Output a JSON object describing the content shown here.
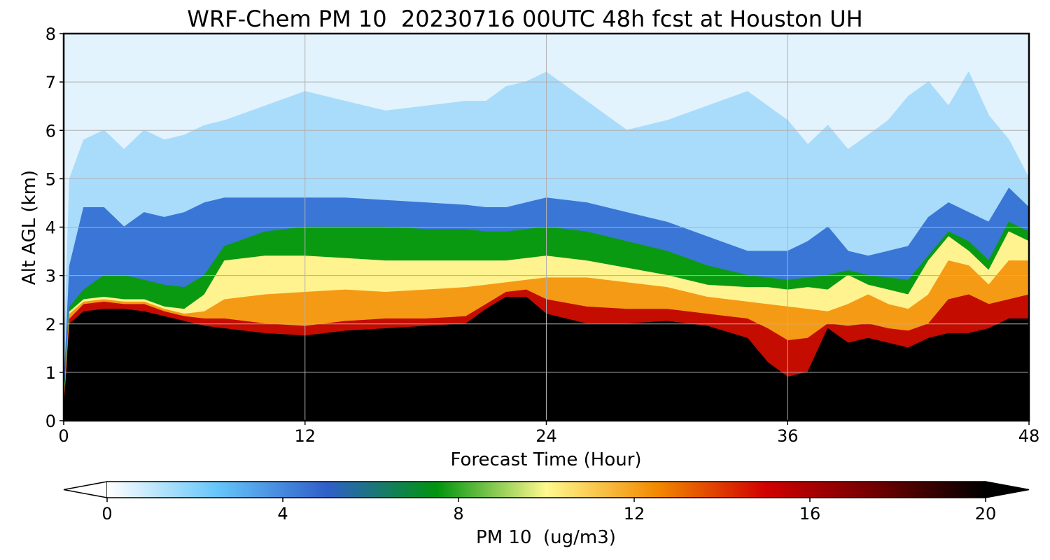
{
  "chart_data": {
    "type": "heatmap",
    "title": "WRF-Chem PM 10  20230716 00UTC 48h fcst at Houston UH",
    "xlabel": "Forecast Time (Hour)",
    "ylabel": "Alt AGL (km)",
    "xlim": [
      0,
      48
    ],
    "ylim": [
      0,
      8
    ],
    "xticks": [
      "0",
      "12",
      "24",
      "36",
      "48"
    ],
    "yticks": [
      "0",
      "1",
      "2",
      "3",
      "4",
      "5",
      "6",
      "7",
      "8"
    ],
    "grid": true,
    "colorbar": {
      "label": "PM 10  (ug/m3)",
      "range": [
        0,
        20
      ],
      "ticks": [
        "0",
        "4",
        "8",
        "12",
        "16",
        "20"
      ],
      "extend": "both",
      "color_stops": [
        {
          "value": 0,
          "color": "#ffffff"
        },
        {
          "value": 2.5,
          "color": "#66c6fa"
        },
        {
          "value": 5,
          "color": "#2f5fc9"
        },
        {
          "value": 7.5,
          "color": "#00940e"
        },
        {
          "value": 10,
          "color": "#fff98e"
        },
        {
          "value": 12.5,
          "color": "#f28a00"
        },
        {
          "value": 15,
          "color": "#d10000"
        },
        {
          "value": 17.5,
          "color": "#6f0000"
        },
        {
          "value": 20,
          "color": "#000000"
        }
      ]
    },
    "profiles_x_hours": [
      0,
      0.3,
      1,
      2,
      3,
      4,
      5,
      6,
      7,
      8,
      10,
      12,
      14,
      16,
      18,
      20,
      21,
      22,
      23,
      24,
      26,
      28,
      30,
      32,
      34,
      35,
      36,
      37,
      38,
      39,
      40,
      41,
      42,
      43,
      44,
      45,
      46,
      47,
      48
    ],
    "boundary_heights_km": {
      "black_top": [
        0,
        2.0,
        2.25,
        2.3,
        2.3,
        2.25,
        2.15,
        2.05,
        1.95,
        1.9,
        1.8,
        1.75,
        1.85,
        1.9,
        1.95,
        2.0,
        2.3,
        2.55,
        2.55,
        2.2,
        2.0,
        2.0,
        2.05,
        1.95,
        1.7,
        1.2,
        0.9,
        1.0,
        1.9,
        1.6,
        1.7,
        1.6,
        1.5,
        1.7,
        1.8,
        1.8,
        1.9,
        2.1,
        2.1
      ],
      "red_top": [
        0.1,
        2.1,
        2.4,
        2.45,
        2.4,
        2.4,
        2.25,
        2.15,
        2.1,
        2.1,
        2.0,
        1.95,
        2.05,
        2.1,
        2.1,
        2.15,
        2.4,
        2.65,
        2.7,
        2.5,
        2.35,
        2.3,
        2.3,
        2.2,
        2.1,
        1.9,
        1.65,
        1.7,
        2.0,
        1.95,
        2.0,
        1.9,
        1.85,
        2.0,
        2.5,
        2.6,
        2.4,
        2.5,
        2.6
      ],
      "orange_top": [
        0.15,
        2.2,
        2.45,
        2.5,
        2.45,
        2.45,
        2.3,
        2.2,
        2.25,
        2.5,
        2.6,
        2.65,
        2.7,
        2.65,
        2.7,
        2.75,
        2.8,
        2.85,
        2.9,
        2.95,
        2.95,
        2.85,
        2.75,
        2.55,
        2.45,
        2.4,
        2.35,
        2.3,
        2.25,
        2.4,
        2.6,
        2.4,
        2.3,
        2.6,
        3.3,
        3.2,
        2.8,
        3.3,
        3.3
      ],
      "yellow_top": [
        0.2,
        2.25,
        2.5,
        2.55,
        2.5,
        2.5,
        2.35,
        2.3,
        2.6,
        3.3,
        3.4,
        3.4,
        3.35,
        3.3,
        3.3,
        3.3,
        3.3,
        3.3,
        3.35,
        3.4,
        3.3,
        3.15,
        3.0,
        2.8,
        2.75,
        2.75,
        2.7,
        2.75,
        2.7,
        3.0,
        2.8,
        2.7,
        2.6,
        3.3,
        3.8,
        3.5,
        3.1,
        3.9,
        3.7
      ],
      "green_top": [
        0.3,
        2.35,
        2.7,
        3.0,
        3.0,
        2.9,
        2.8,
        2.75,
        3.0,
        3.6,
        3.9,
        4.0,
        4.0,
        4.0,
        3.95,
        3.95,
        3.9,
        3.9,
        3.95,
        4.0,
        3.9,
        3.7,
        3.5,
        3.2,
        3.0,
        2.95,
        2.9,
        2.95,
        3.0,
        3.1,
        3.0,
        2.95,
        2.9,
        3.4,
        3.9,
        3.7,
        3.3,
        4.1,
        3.9
      ],
      "blue_top": [
        0.5,
        3.2,
        4.4,
        4.4,
        4.0,
        4.3,
        4.2,
        4.3,
        4.5,
        4.6,
        4.6,
        4.6,
        4.6,
        4.55,
        4.5,
        4.45,
        4.4,
        4.4,
        4.5,
        4.6,
        4.5,
        4.3,
        4.1,
        3.8,
        3.5,
        3.5,
        3.5,
        3.7,
        4.0,
        3.5,
        3.4,
        3.5,
        3.6,
        4.2,
        4.5,
        4.3,
        4.1,
        4.8,
        4.4
      ],
      "lightblue_top": [
        1.0,
        5.0,
        5.8,
        6.0,
        5.6,
        6.0,
        5.8,
        5.9,
        6.1,
        6.2,
        6.5,
        6.8,
        6.6,
        6.4,
        6.5,
        6.6,
        6.6,
        6.9,
        7.0,
        7.2,
        6.6,
        6.0,
        6.2,
        6.5,
        6.8,
        6.5,
        6.2,
        5.7,
        6.1,
        5.6,
        5.9,
        6.2,
        6.7,
        7.0,
        6.5,
        7.2,
        6.3,
        5.8,
        5.0
      ]
    }
  }
}
